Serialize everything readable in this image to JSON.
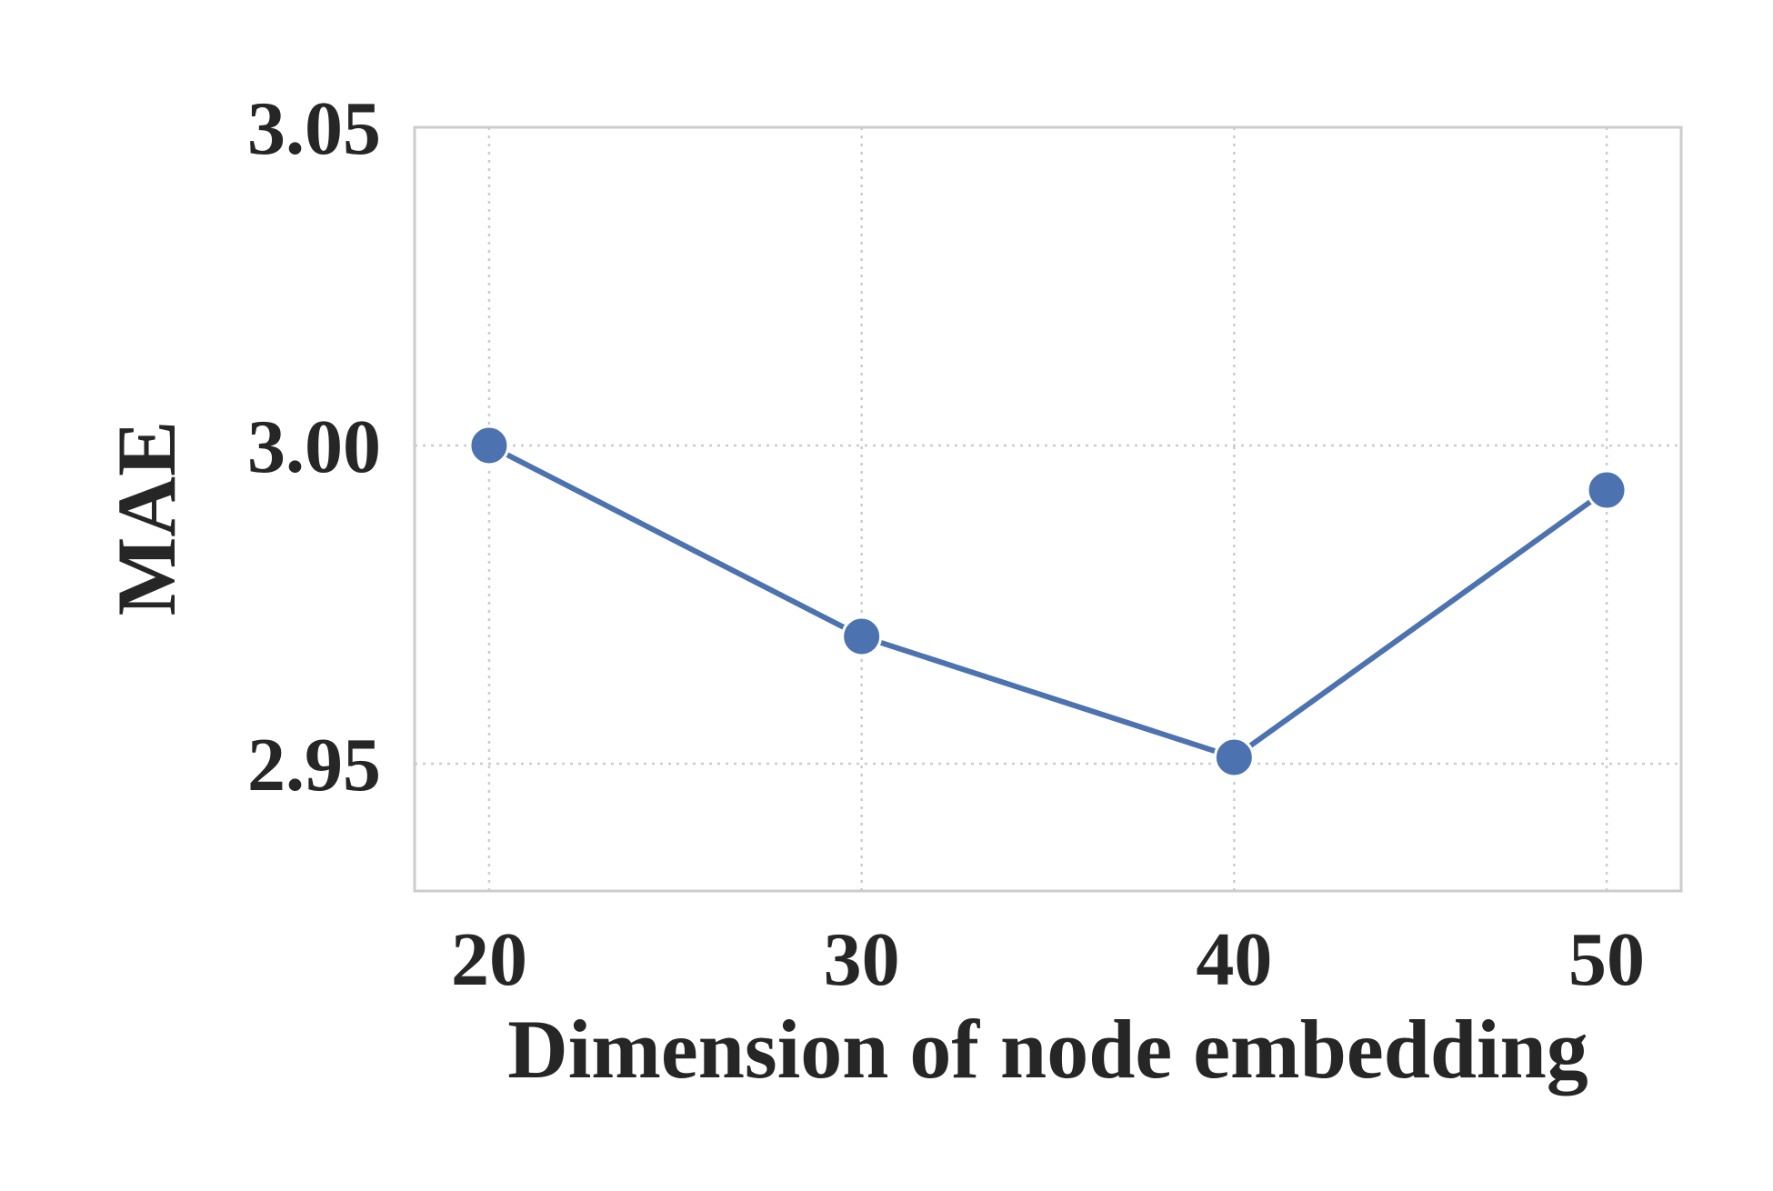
{
  "chart_data": {
    "type": "line",
    "title": "",
    "xlabel": "Dimension of node embedding",
    "ylabel": "MAE",
    "x": [
      20,
      30,
      40,
      50
    ],
    "x_tick_labels": [
      "20",
      "30",
      "40",
      "50"
    ],
    "y_ticks": [
      2.95,
      3.0,
      3.05
    ],
    "y_tick_labels": [
      "2.95",
      "3.00",
      "3.05"
    ],
    "xlim": [
      18,
      52
    ],
    "ylim": [
      2.93,
      3.05
    ],
    "grid": true,
    "legend": "none",
    "series": [
      {
        "values": [
          3.0,
          2.97,
          2.951,
          2.993
        ],
        "color": "#4c72b0",
        "marker": "circle"
      }
    ]
  }
}
